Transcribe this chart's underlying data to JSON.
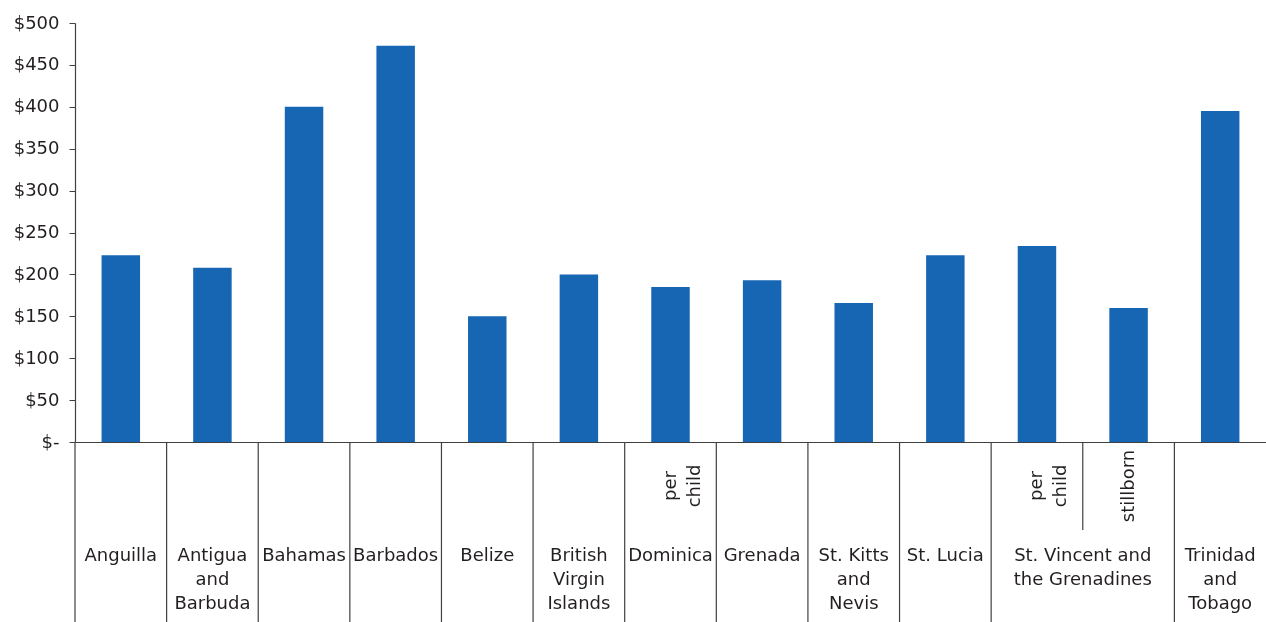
{
  "chart_data": {
    "type": "bar",
    "categories": [
      "Anguilla",
      "Antigua and Barbuda",
      "Bahamas",
      "Barbados",
      "Belize",
      "British Virgin Islands",
      "Dominica",
      "Grenada",
      "St. Kitts and Nevis",
      "St. Lucia",
      "St. Vincent and the Grenadines",
      null,
      "Trinidad and Tobago"
    ],
    "values": [
      223,
      208,
      400,
      473,
      150,
      200,
      185,
      193,
      166,
      223,
      234,
      160,
      395
    ],
    "color": "#1666b3",
    "ylim": [
      0,
      500
    ],
    "yticks": [
      {
        "value": 0,
        "label": "$-"
      },
      {
        "value": 50,
        "label": "$50"
      },
      {
        "value": 100,
        "label": "$100"
      },
      {
        "value": 150,
        "label": "$150"
      },
      {
        "value": 200,
        "label": "$200"
      },
      {
        "value": 250,
        "label": "$250"
      },
      {
        "value": 300,
        "label": "$300"
      },
      {
        "value": 350,
        "label": "$350"
      },
      {
        "value": 400,
        "label": "$400"
      },
      {
        "value": 450,
        "label": "$450"
      },
      {
        "value": 500,
        "label": "$500"
      }
    ],
    "annotations": [
      "per child",
      "per child",
      "stillborn"
    ]
  }
}
